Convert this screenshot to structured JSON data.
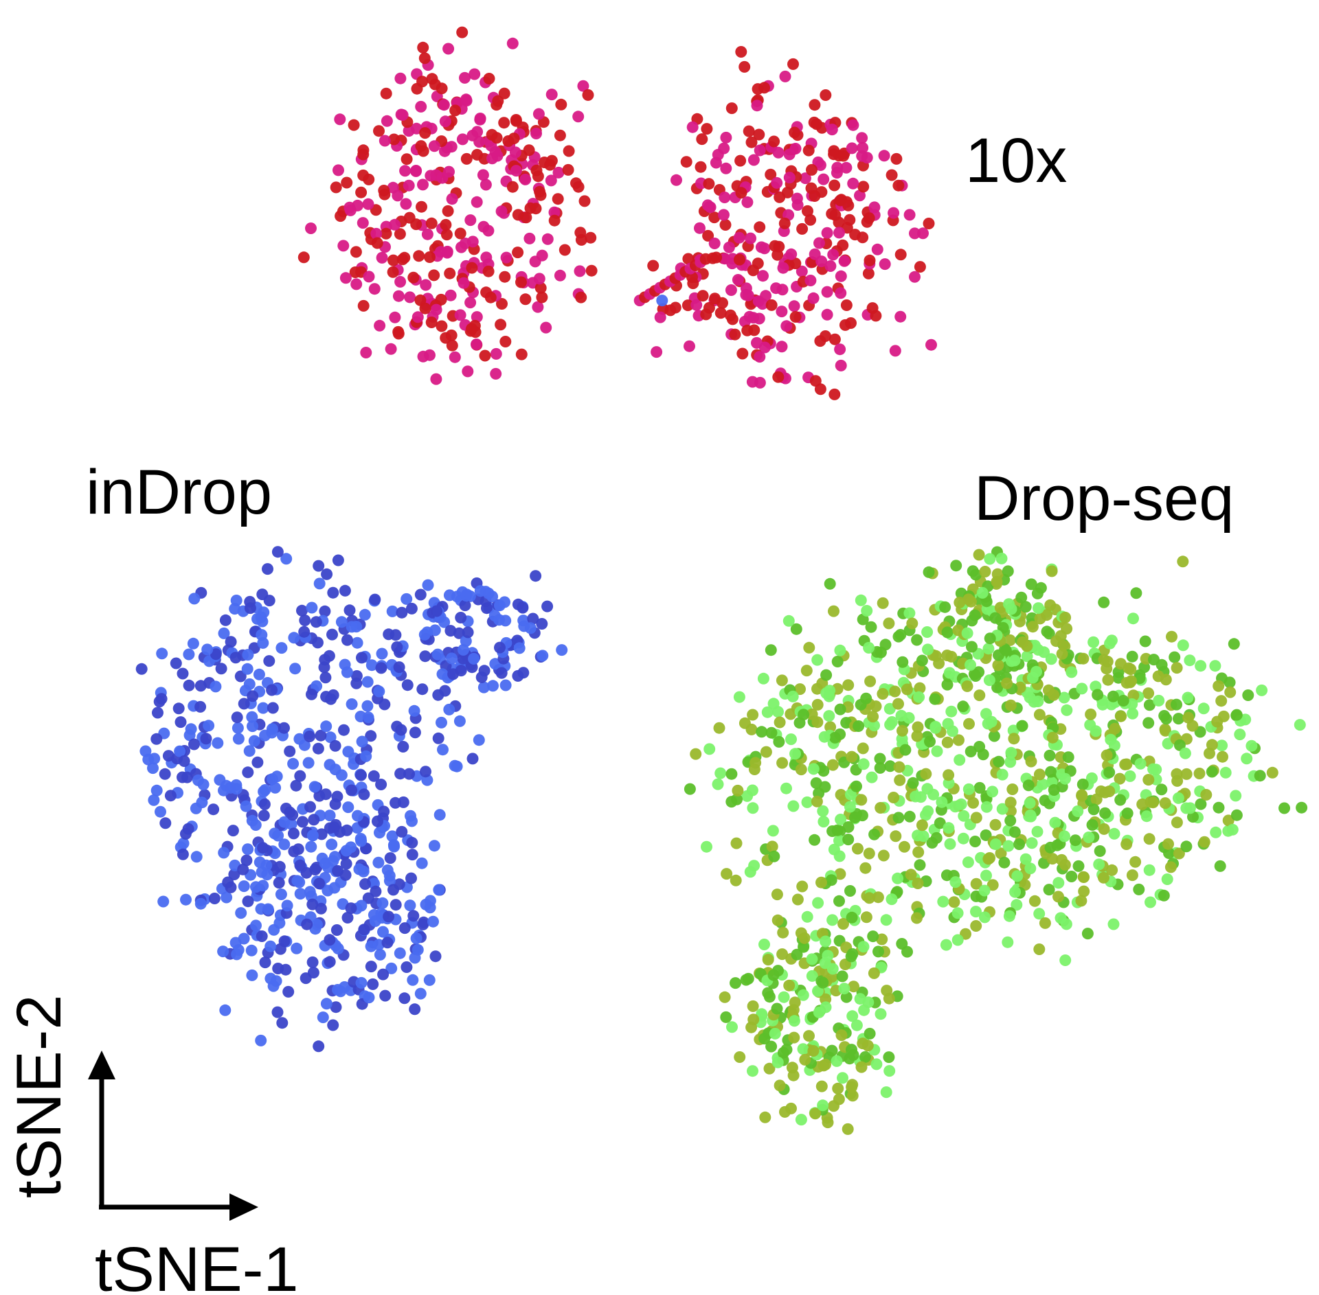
{
  "chart_data": {
    "type": "scatter",
    "title": "",
    "xlabel": "tSNE-1",
    "ylabel": "tSNE-2",
    "xlim": [
      0,
      100
    ],
    "ylim": [
      0,
      100
    ],
    "grid": false,
    "axes_ticks": false,
    "series": [
      {
        "name": "10x",
        "colors": [
          "#d81a86",
          "#cf1820"
        ],
        "cluster": {
          "count": 640,
          "lobes": [
            {
              "cx": 35.5,
              "cy": 83.5,
              "rx": 10.5,
              "ry": 13.0,
              "weight": 0.52
            },
            {
              "cx": 59.5,
              "cy": 81.5,
              "rx": 10.5,
              "ry": 13.0,
              "weight": 0.48
            }
          ],
          "bridge": {
            "from": [
              48.5,
              76.8
            ],
            "to": [
              53.5,
              80.0
            ],
            "count": 14
          },
          "outlier": {
            "x": 50.2,
            "y": 76.8,
            "color": "#4a6cf0"
          }
        }
      },
      {
        "name": "inDrop",
        "colors": [
          "#3b45c9",
          "#4a6cf0"
        ],
        "cluster": {
          "count": 700,
          "lobes": [
            {
              "cx": 22.0,
              "cy": 43.0,
              "rx": 13.0,
              "ry": 14.0,
              "weight": 0.55
            },
            {
              "cx": 25.0,
              "cy": 29.0,
              "rx": 9.5,
              "ry": 9.0,
              "weight": 0.3
            },
            {
              "cx": 36.0,
              "cy": 51.0,
              "rx": 5.5,
              "ry": 5.0,
              "weight": 0.15
            }
          ]
        }
      },
      {
        "name": "Drop-seq",
        "colors": [
          "#5cbf2a",
          "#7cf26a",
          "#9ab82c"
        ],
        "cluster": {
          "count": 1150,
          "lobes": [
            {
              "cx": 75.0,
              "cy": 41.0,
              "rx": 22.0,
              "ry": 14.0,
              "weight": 0.72
            },
            {
              "cx": 62.0,
              "cy": 22.0,
              "rx": 6.5,
              "ry": 9.0,
              "weight": 0.18
            },
            {
              "cx": 76.0,
              "cy": 52.0,
              "rx": 5.0,
              "ry": 5.5,
              "weight": 0.1
            }
          ]
        }
      }
    ],
    "annotations": [
      {
        "text": "10x",
        "series": "10x"
      },
      {
        "text": "inDrop",
        "series": "inDrop"
      },
      {
        "text": "Drop-seq",
        "series": "Drop-seq"
      }
    ]
  }
}
